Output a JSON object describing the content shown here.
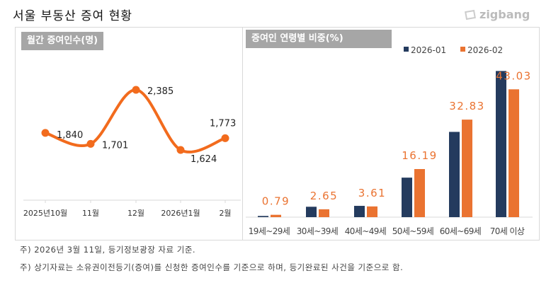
{
  "header": {
    "title": "서울 부동산  증여 현황",
    "logo": "zigbang"
  },
  "chart_data": [
    {
      "type": "line",
      "title": "월간 증여인수(명)",
      "categories": [
        "2025년10월",
        "11월",
        "12월",
        "2026년1월",
        "2월"
      ],
      "values": [
        1840,
        1701,
        2385,
        1624,
        1773
      ],
      "data_labels": [
        "1,840",
        "1,701",
        "2,385",
        "1,624",
        "1,773"
      ],
      "color": "#f26b1d",
      "grid": false
    },
    {
      "type": "bar",
      "title": "증여인 연령별 비중(%)",
      "categories": [
        "19세~29세",
        "30세~39세",
        "40세~49세",
        "50세~59세",
        "60세~69세",
        "70세 이상"
      ],
      "series": [
        {
          "name": "2026-01",
          "values": [
            0.4,
            3.5,
            3.8,
            13.3,
            28.7,
            49.2
          ],
          "color": "#243b5e"
        },
        {
          "name": "2026-02",
          "values": [
            0.79,
            2.65,
            3.61,
            16.19,
            32.83,
            43.03
          ],
          "color": "#ea7331",
          "data_labels": [
            "0.79",
            "2.65",
            "3.61",
            "16.19",
            "32.83",
            "43.03"
          ]
        }
      ],
      "legend": "bottom",
      "grid": false
    }
  ],
  "notes": [
    "주)   2026년 3월 11일, 등기정보광장 자료 기준.",
    "주)  상기자료는 소유권이전등기(증여)를 신청한 증여인수를 기준으로 하며, 등기완료된 사건을 기준으로 함."
  ]
}
